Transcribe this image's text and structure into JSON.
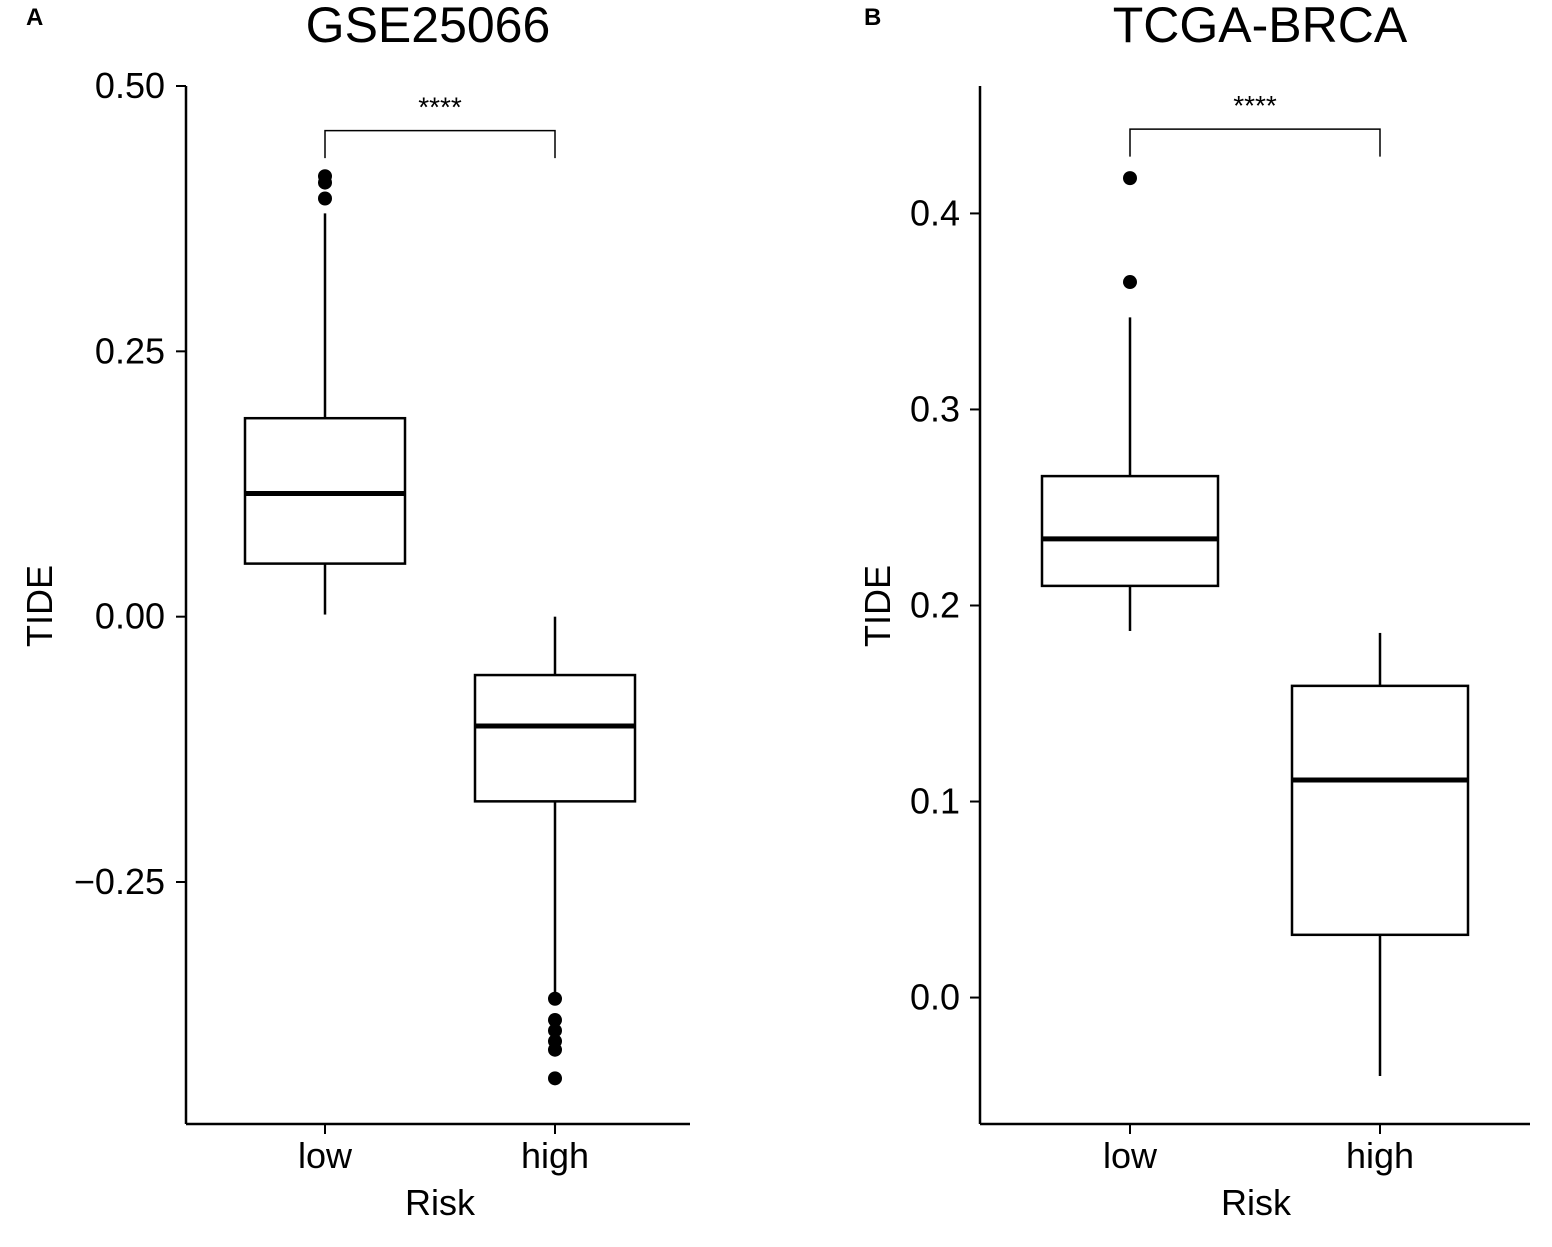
{
  "chart_data": [
    {
      "type": "box",
      "panel_letter": "A",
      "title": "GSE25066",
      "xlabel": "Risk",
      "ylabel": "TIDE",
      "ylim": [
        -0.478,
        0.5
      ],
      "yticks": [
        0.5,
        0.25,
        0.0,
        -0.25
      ],
      "ytick_labels": [
        "0.50",
        "0.25",
        "0.00",
        "−0.25"
      ],
      "categories": [
        "low",
        "high"
      ],
      "boxes": [
        {
          "category": "low",
          "whisker_low": 0.002,
          "q1": 0.05,
          "median": 0.116,
          "q3": 0.187,
          "whisker_high": 0.38,
          "outliers": [
            0.415,
            0.409,
            0.394
          ]
        },
        {
          "category": "high",
          "whisker_low": -0.36,
          "q1": -0.174,
          "median": -0.103,
          "q3": -0.055,
          "whisker_high": 0.0,
          "outliers": [
            -0.36,
            -0.38,
            -0.39,
            -0.4,
            -0.408,
            -0.435
          ]
        }
      ],
      "significance": {
        "label": "****",
        "y": 0.458,
        "drop": 0.026
      },
      "grid": false
    },
    {
      "type": "box",
      "panel_letter": "B",
      "title": "TCGA-BRCA",
      "xlabel": "Risk",
      "ylabel": "TIDE",
      "ylim": [
        -0.0645,
        0.465
      ],
      "yticks": [
        0.4,
        0.3,
        0.2,
        0.1,
        0.0
      ],
      "ytick_labels": [
        "0.4",
        "0.3",
        "0.2",
        "0.1",
        "0.0"
      ],
      "categories": [
        "low",
        "high"
      ],
      "boxes": [
        {
          "category": "low",
          "whisker_low": 0.187,
          "q1": 0.21,
          "median": 0.234,
          "q3": 0.266,
          "whisker_high": 0.347,
          "outliers": [
            0.418,
            0.365
          ]
        },
        {
          "category": "high",
          "whisker_low": -0.04,
          "q1": 0.032,
          "median": 0.111,
          "q3": 0.159,
          "whisker_high": 0.186,
          "outliers": []
        }
      ],
      "significance": {
        "label": "****",
        "y": 0.443,
        "drop": 0.014
      },
      "grid": false
    }
  ]
}
